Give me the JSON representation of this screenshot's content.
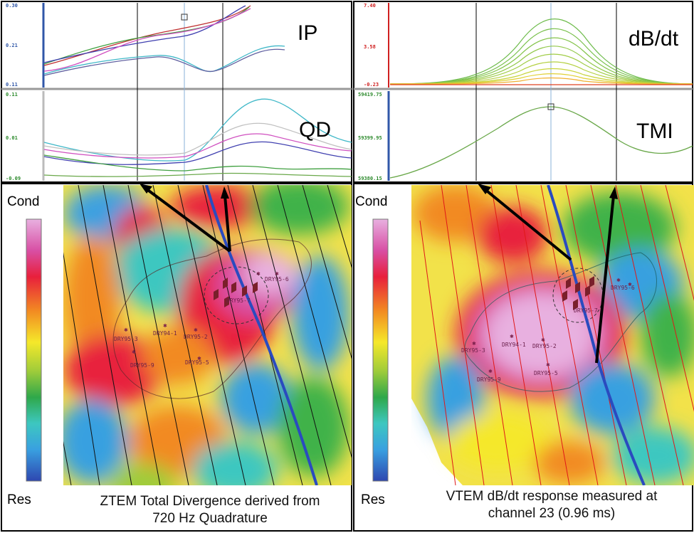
{
  "panels": {
    "ip": {
      "title": "IP",
      "ticks": [
        "0.30",
        "0.21",
        "0.11"
      ]
    },
    "qd": {
      "title": "QD",
      "ticks": [
        "0.11",
        "0.01",
        "-0.09"
      ]
    },
    "dbdt": {
      "title": "dB/dt",
      "ticks": [
        "7.40",
        "3.58",
        "-0.23"
      ]
    },
    "tmi": {
      "title": "TMI",
      "ticks": [
        "59419.75",
        "59399.95",
        "59380.15"
      ]
    }
  },
  "maps": {
    "left": {
      "scale_top": "Cond",
      "scale_bottom": "Res",
      "caption_line1": "ZTEM Total Divergence derived from",
      "caption_line2": "720 Hz Quadrature",
      "wells": [
        "DRY95-3",
        "DRY94-1",
        "DRY95-2",
        "DRY95-9",
        "DRY95-5",
        "DRY95-7",
        "DRY95-6"
      ]
    },
    "right": {
      "scale_top": "Cond",
      "scale_bottom": "Res",
      "caption_line1": "VTEM dB/dt response measured at",
      "caption_line2": "channel 23 (0.96 ms)",
      "wells": [
        "DRY95-3",
        "DRY94-1",
        "DRY95-2",
        "DRY95-9",
        "DRY95-5",
        "DRY95-7",
        "DRY95-6"
      ]
    }
  },
  "colors": {
    "ztem_lines": "#111111",
    "vtem_lines": "#e01818",
    "fault": "#2a4bbf",
    "arrow": "#000000"
  }
}
